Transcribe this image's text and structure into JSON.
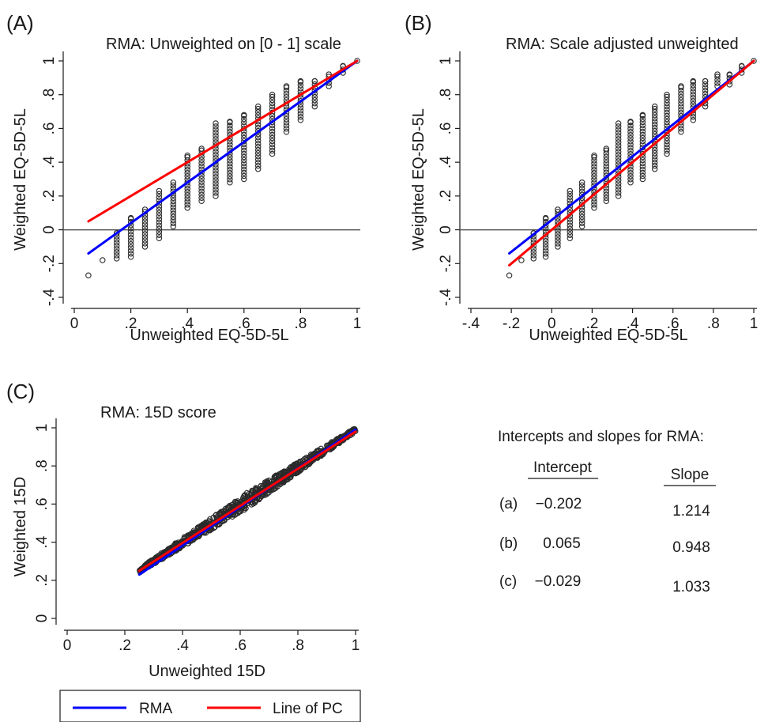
{
  "chart_data": [
    {
      "type": "scatter",
      "panel_label": "(A)",
      "title": "RMA: Unweighted on [0 - 1] scale",
      "xlabel": "Unweighted EQ-5D-5L",
      "ylabel": "Weighted EQ-5D-5L",
      "xlim": [
        0,
        1
      ],
      "ylim": [
        -0.4,
        1
      ],
      "xticks": [
        "0",
        ".2",
        ".4",
        ".6",
        ".8",
        "1"
      ],
      "yticks": [
        "-.4",
        "-.2",
        "0",
        ".2",
        ".4",
        ".6",
        ".8",
        "1"
      ],
      "reference_line_y": 0,
      "series": [
        {
          "name": "RMA",
          "color": "#0000ff",
          "type": "line",
          "x": [
            0.05,
            1.0
          ],
          "y": [
            -0.14,
            1.0
          ]
        },
        {
          "name": "Line of PC",
          "color": "#ff0000",
          "type": "line",
          "x": [
            0.05,
            1.0
          ],
          "y": [
            0.05,
            1.0
          ]
        }
      ],
      "scatter_columns": [
        {
          "x": 0.05,
          "y": [
            -0.27
          ]
        },
        {
          "x": 0.1,
          "y": [
            -0.18
          ]
        },
        {
          "x": 0.15,
          "y": [
            -0.17,
            -0.02
          ]
        },
        {
          "x": 0.2,
          "y": [
            -0.16,
            0.07
          ]
        },
        {
          "x": 0.25,
          "y": [
            -0.1,
            0.12
          ]
        },
        {
          "x": 0.3,
          "y": [
            -0.05,
            0.23
          ]
        },
        {
          "x": 0.35,
          "y": [
            0.02,
            0.28
          ]
        },
        {
          "x": 0.4,
          "y": [
            0.13,
            0.44
          ]
        },
        {
          "x": 0.45,
          "y": [
            0.17,
            0.48
          ]
        },
        {
          "x": 0.5,
          "y": [
            0.2,
            0.63
          ]
        },
        {
          "x": 0.55,
          "y": [
            0.28,
            0.64
          ]
        },
        {
          "x": 0.6,
          "y": [
            0.3,
            0.68
          ]
        },
        {
          "x": 0.65,
          "y": [
            0.36,
            0.73
          ]
        },
        {
          "x": 0.7,
          "y": [
            0.45,
            0.8
          ]
        },
        {
          "x": 0.75,
          "y": [
            0.58,
            0.85
          ]
        },
        {
          "x": 0.8,
          "y": [
            0.65,
            0.88
          ]
        },
        {
          "x": 0.85,
          "y": [
            0.73,
            0.88
          ]
        },
        {
          "x": 0.9,
          "y": [
            0.85,
            0.92
          ]
        },
        {
          "x": 0.95,
          "y": [
            0.93,
            0.97
          ]
        },
        {
          "x": 1.0,
          "y": [
            1.0
          ]
        }
      ]
    },
    {
      "type": "scatter",
      "panel_label": "(B)",
      "title": "RMA: Scale adjusted unweighted",
      "xlabel": "Unweighted EQ-5D-5L",
      "ylabel": "Weighted EQ-5D-5L",
      "xlim": [
        -0.4,
        1
      ],
      "ylim": [
        -0.4,
        1
      ],
      "xticks": [
        "-.4",
        "-.2",
        "0",
        ".2",
        ".4",
        ".6",
        ".8",
        "1"
      ],
      "yticks": [
        "-.4",
        "-.2",
        "0",
        ".2",
        ".4",
        ".6",
        ".8",
        "1"
      ],
      "reference_line_y": 0,
      "series": [
        {
          "name": "RMA",
          "color": "#0000ff",
          "type": "line",
          "x": [
            -0.21,
            1.0
          ],
          "y": [
            -0.14,
            1.0
          ]
        },
        {
          "name": "Line of PC",
          "color": "#ff0000",
          "type": "line",
          "x": [
            -0.21,
            1.0
          ],
          "y": [
            -0.21,
            1.0
          ]
        }
      ],
      "scatter_columns": [
        {
          "x": -0.21,
          "y": [
            -0.27
          ]
        },
        {
          "x": -0.15,
          "y": [
            -0.18
          ]
        },
        {
          "x": -0.09,
          "y": [
            -0.17,
            -0.02
          ]
        },
        {
          "x": -0.03,
          "y": [
            -0.16,
            0.07
          ]
        },
        {
          "x": 0.03,
          "y": [
            -0.1,
            0.12
          ]
        },
        {
          "x": 0.09,
          "y": [
            -0.05,
            0.23
          ]
        },
        {
          "x": 0.15,
          "y": [
            0.02,
            0.28
          ]
        },
        {
          "x": 0.21,
          "y": [
            0.13,
            0.44
          ]
        },
        {
          "x": 0.27,
          "y": [
            0.17,
            0.48
          ]
        },
        {
          "x": 0.33,
          "y": [
            0.2,
            0.63
          ]
        },
        {
          "x": 0.39,
          "y": [
            0.28,
            0.64
          ]
        },
        {
          "x": 0.45,
          "y": [
            0.3,
            0.68
          ]
        },
        {
          "x": 0.51,
          "y": [
            0.36,
            0.73
          ]
        },
        {
          "x": 0.57,
          "y": [
            0.45,
            0.8
          ]
        },
        {
          "x": 0.64,
          "y": [
            0.58,
            0.85
          ]
        },
        {
          "x": 0.7,
          "y": [
            0.65,
            0.88
          ]
        },
        {
          "x": 0.76,
          "y": [
            0.73,
            0.88
          ]
        },
        {
          "x": 0.82,
          "y": [
            0.85,
            0.92
          ]
        },
        {
          "x": 0.88,
          "y": [
            0.86,
            0.92
          ]
        },
        {
          "x": 0.94,
          "y": [
            0.93,
            0.97
          ]
        },
        {
          "x": 1.0,
          "y": [
            1.0
          ]
        }
      ]
    },
    {
      "type": "scatter",
      "panel_label": "(C)",
      "title": "RMA: 15D score",
      "xlabel": "Unweighted 15D",
      "ylabel": "Weighted 15D",
      "xlim": [
        0,
        1
      ],
      "ylim": [
        0,
        1
      ],
      "xticks": [
        "0",
        ".2",
        ".4",
        ".6",
        ".8",
        "1"
      ],
      "yticks": [
        "0",
        ".2",
        ".4",
        ".6",
        ".8",
        "1"
      ],
      "series": [
        {
          "name": "RMA",
          "color": "#0000ff",
          "type": "line",
          "x": [
            0.25,
            1.0
          ],
          "y": [
            0.23,
            0.99
          ]
        },
        {
          "name": "Line of PC",
          "color": "#ff0000",
          "type": "line",
          "x": [
            0.25,
            1.0
          ],
          "y": [
            0.25,
            0.98
          ]
        }
      ],
      "scatter_band": {
        "x": [
          0.25,
          1.0
        ],
        "center": [
          0.25,
          0.99
        ],
        "halfwidth": [
          0.01,
          0.04,
          0.01
        ]
      }
    }
  ],
  "table": {
    "title": "Intercepts and slopes for RMA:",
    "headers": [
      "Intercept",
      "Slope"
    ],
    "rows": [
      {
        "label": "(a)",
        "intercept": "−0.202",
        "slope": "1.214"
      },
      {
        "label": "(b)",
        "intercept": "0.065",
        "slope": "0.948"
      },
      {
        "label": "(c)",
        "intercept": "−0.029",
        "slope": "1.033"
      }
    ]
  },
  "legend": [
    {
      "label": "RMA",
      "color": "#0000ff"
    },
    {
      "label": "Line of PC",
      "color": "#ff0000"
    }
  ]
}
